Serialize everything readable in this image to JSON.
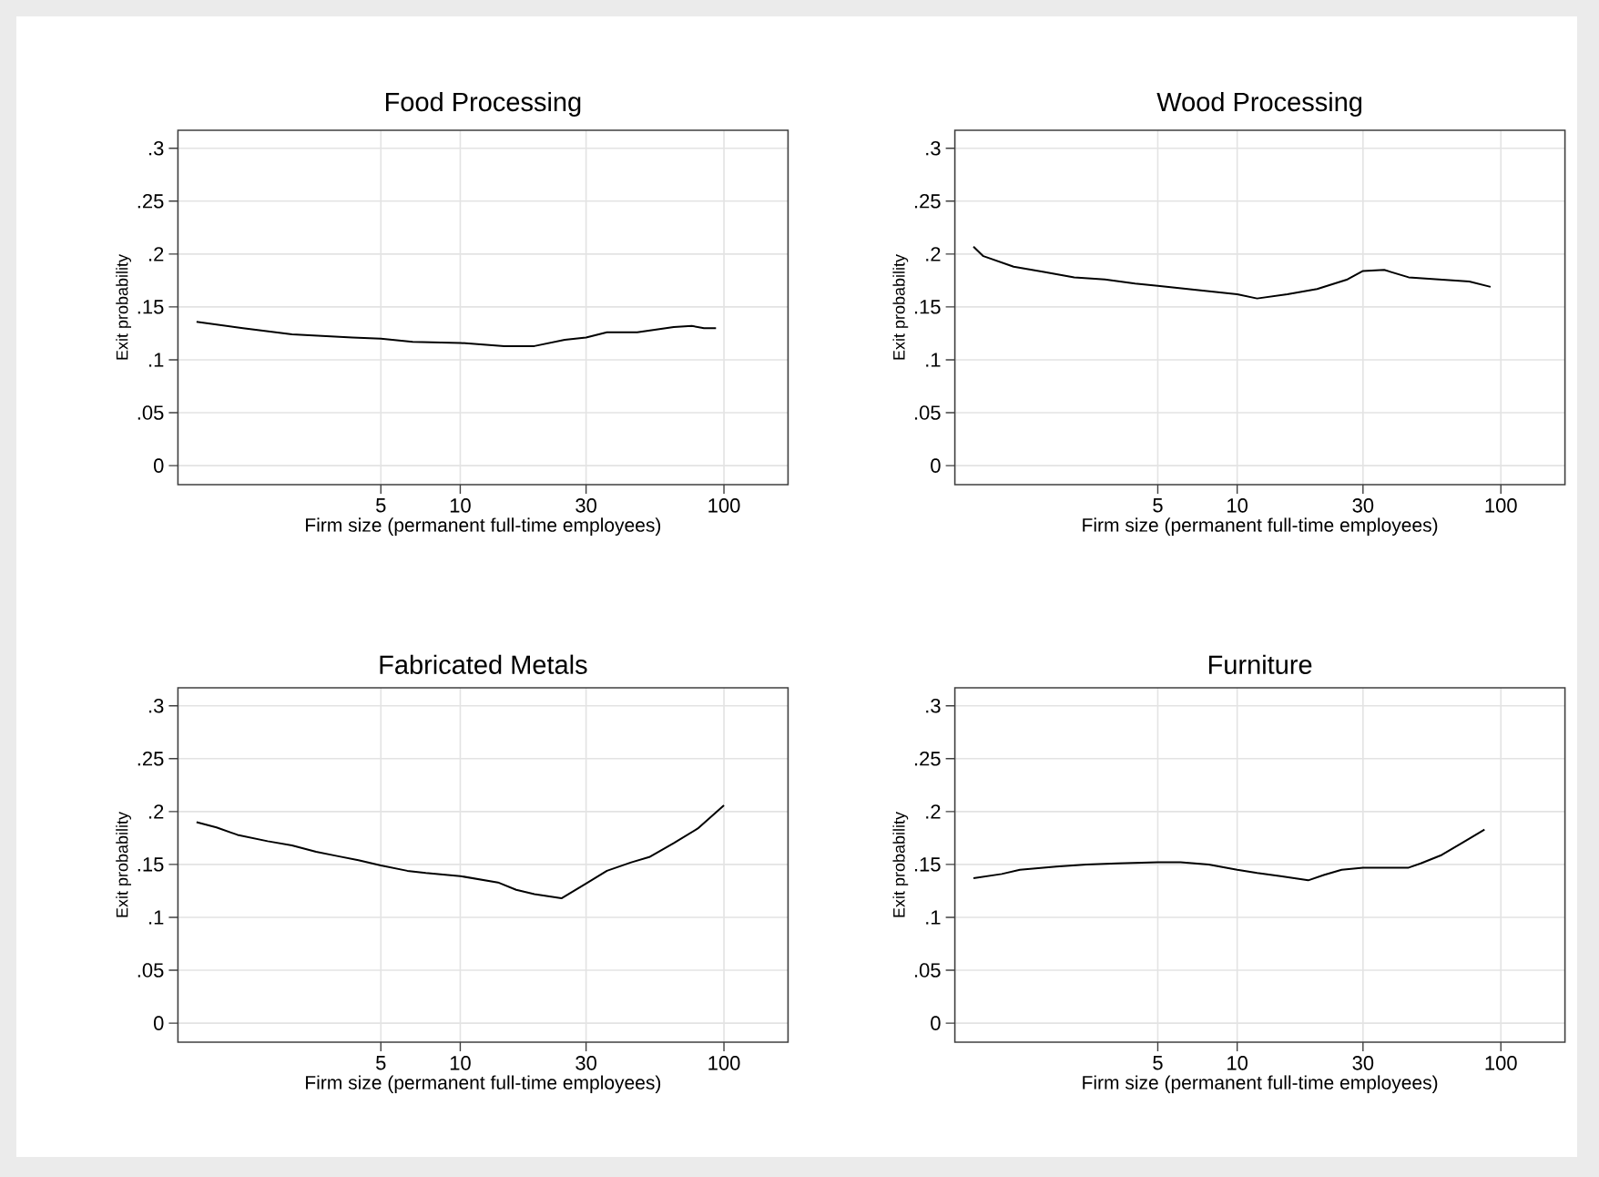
{
  "chart_data": [
    {
      "type": "line",
      "title": "Food Processing",
      "xlabel": "Firm size (permanent full-time employees)",
      "ylabel": "Exit probability",
      "log": "x",
      "grid": true,
      "color": "#000000",
      "xlim": [
        0.85,
        175
      ],
      "ylim": [
        -0.018,
        0.317
      ],
      "xticks": [
        5,
        10,
        30,
        100
      ],
      "yticks": [
        0,
        {
          "value": 0.05,
          "label": ".05"
        },
        {
          "value": 0.1,
          "label": ".1"
        },
        {
          "value": 0.15,
          "label": ".15"
        },
        {
          "value": 0.2,
          "label": ".2"
        },
        {
          "value": 0.25,
          "label": ".25"
        },
        {
          "value": 0.3,
          "label": ".3"
        }
      ],
      "x": [
        1.0,
        1.5,
        2.3,
        3.9,
        5,
        6.6,
        10,
        14.7,
        19.1,
        24.9,
        30,
        36,
        46.9,
        64.5,
        75.5,
        84,
        93.3
      ],
      "values": [
        0.136,
        0.13,
        0.124,
        0.121,
        0.12,
        0.117,
        0.116,
        0.113,
        0.113,
        0.119,
        0.121,
        0.126,
        0.126,
        0.131,
        0.132,
        0.13,
        0.13
      ]
    },
    {
      "type": "line",
      "title": "Wood Processing",
      "xlabel": "Firm size (permanent full-time employees)",
      "ylabel": "Exit probability",
      "log": "x",
      "grid": true,
      "color": "#000000",
      "xlim": [
        0.85,
        175
      ],
      "ylim": [
        -0.018,
        0.317
      ],
      "xticks": [
        5,
        10,
        30,
        100
      ],
      "yticks": [
        0,
        {
          "value": 0.05,
          "label": ".05"
        },
        {
          "value": 0.1,
          "label": ".1"
        },
        {
          "value": 0.15,
          "label": ".15"
        },
        {
          "value": 0.2,
          "label": ".2"
        },
        {
          "value": 0.25,
          "label": ".25"
        },
        {
          "value": 0.3,
          "label": ".3"
        }
      ],
      "x": [
        1.0,
        1.09,
        1.42,
        1.85,
        2.41,
        3.15,
        4.1,
        5,
        7.0,
        10,
        11.9,
        15.5,
        20.1,
        26.2,
        30,
        36.1,
        44.7,
        58.2,
        75.9,
        91.4
      ],
      "values": [
        0.207,
        0.198,
        0.188,
        0.183,
        0.178,
        0.176,
        0.172,
        0.17,
        0.166,
        0.162,
        0.158,
        0.162,
        0.167,
        0.176,
        0.184,
        0.185,
        0.178,
        0.176,
        0.174,
        0.169
      ]
    },
    {
      "type": "line",
      "title": "Fabricated Metals",
      "xlabel": "Firm size (permanent full-time employees)",
      "ylabel": "Exit probability",
      "log": "x",
      "grid": true,
      "color": "#000000",
      "xlim": [
        0.85,
        175
      ],
      "ylim": [
        -0.018,
        0.317
      ],
      "xticks": [
        5,
        10,
        30,
        100
      ],
      "yticks": [
        0,
        {
          "value": 0.05,
          "label": ".05"
        },
        {
          "value": 0.1,
          "label": ".1"
        },
        {
          "value": 0.15,
          "label": ".15"
        },
        {
          "value": 0.2,
          "label": ".2"
        },
        {
          "value": 0.25,
          "label": ".25"
        },
        {
          "value": 0.3,
          "label": ".3"
        }
      ],
      "x": [
        1.0,
        1.19,
        1.43,
        1.86,
        2.3,
        2.84,
        3.41,
        4.11,
        5,
        6.3,
        7.4,
        10,
        13.9,
        16.3,
        19.1,
        24.2,
        30,
        36,
        44.5,
        52.1,
        64.4,
        79.6,
        100
      ],
      "values": [
        0.19,
        0.185,
        0.178,
        0.172,
        0.168,
        0.162,
        0.158,
        0.154,
        0.149,
        0.144,
        0.142,
        0.139,
        0.133,
        0.126,
        0.122,
        0.118,
        0.132,
        0.144,
        0.152,
        0.157,
        0.17,
        0.184,
        0.206
      ]
    },
    {
      "type": "line",
      "title": "Furniture",
      "xlabel": "Firm size (permanent full-time employees)",
      "ylabel": "Exit probability",
      "log": "x",
      "grid": true,
      "color": "#000000",
      "xlim": [
        0.85,
        175
      ],
      "ylim": [
        -0.018,
        0.317
      ],
      "xticks": [
        5,
        10,
        30,
        100
      ],
      "yticks": [
        0,
        {
          "value": 0.05,
          "label": ".05"
        },
        {
          "value": 0.1,
          "label": ".1"
        },
        {
          "value": 0.15,
          "label": ".15"
        },
        {
          "value": 0.2,
          "label": ".2"
        },
        {
          "value": 0.25,
          "label": ".25"
        },
        {
          "value": 0.3,
          "label": ".3"
        }
      ],
      "x": [
        1.0,
        1.28,
        1.5,
        2.06,
        2.68,
        3.5,
        5,
        6.1,
        7.8,
        10,
        11.9,
        14.6,
        18.6,
        21.3,
        24.9,
        30,
        44.7,
        49.7,
        59.7,
        71.9,
        86.7
      ],
      "values": [
        0.137,
        0.141,
        0.145,
        0.148,
        0.15,
        0.151,
        0.152,
        0.152,
        0.15,
        0.145,
        0.142,
        0.139,
        0.135,
        0.14,
        0.145,
        0.147,
        0.147,
        0.151,
        0.159,
        0.171,
        0.183
      ]
    }
  ]
}
